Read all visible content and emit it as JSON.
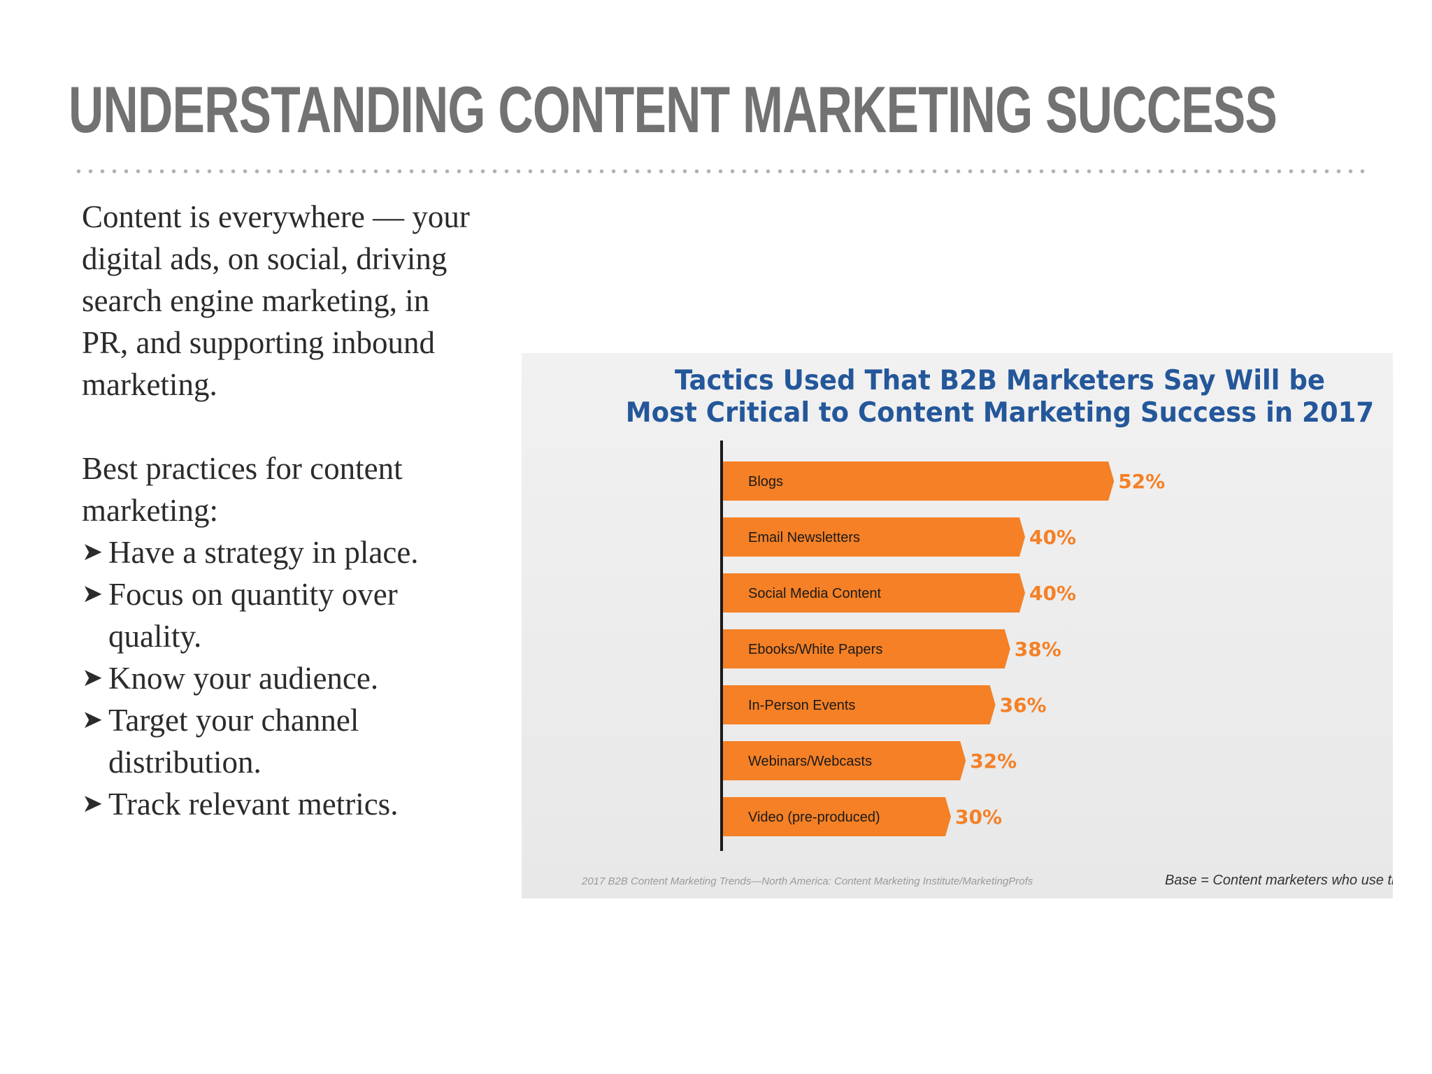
{
  "slide": {
    "title": "UNDERSTANDING CONTENT MARKETING SUCCESS",
    "paragraph": "Content is everywhere — your digital ads, on social, driving search engine marketing, in PR, and supporting inbound marketing.",
    "intro": "Best practices for content marketing:",
    "bullets": [
      "Have a strategy in place.",
      "Focus on quantity over quality.",
      "Know your audience.",
      "Target your channel distribution.",
      "Track relevant metrics."
    ],
    "bullet_glyph": "➤"
  },
  "chart_data": {
    "type": "bar",
    "orientation": "horizontal",
    "title_lines": [
      "Tactics Used That B2B Marketers Say Will be",
      "Most Critical to Content Marketing Success in 2017"
    ],
    "categories": [
      "Blogs",
      "Email Newsletters",
      "Social Media Content",
      "Ebooks/White Papers",
      "In-Person Events",
      "Webinars/Webcasts",
      "Video (pre-produced)"
    ],
    "values": [
      52,
      40,
      40,
      38,
      36,
      32,
      30
    ],
    "value_labels": [
      "52%",
      "40%",
      "40%",
      "38%",
      "36%",
      "32%",
      "30%"
    ],
    "unit": "%",
    "bar_color": "#f58025",
    "label_color": "#f58025",
    "title_color": "#24579a",
    "source": "2017 B2B Content Marketing Trends—North America: Content Marketing Institute/MarketingProfs",
    "base_note": "Base = Content marketers who use th",
    "grid": false,
    "legend": "none"
  }
}
